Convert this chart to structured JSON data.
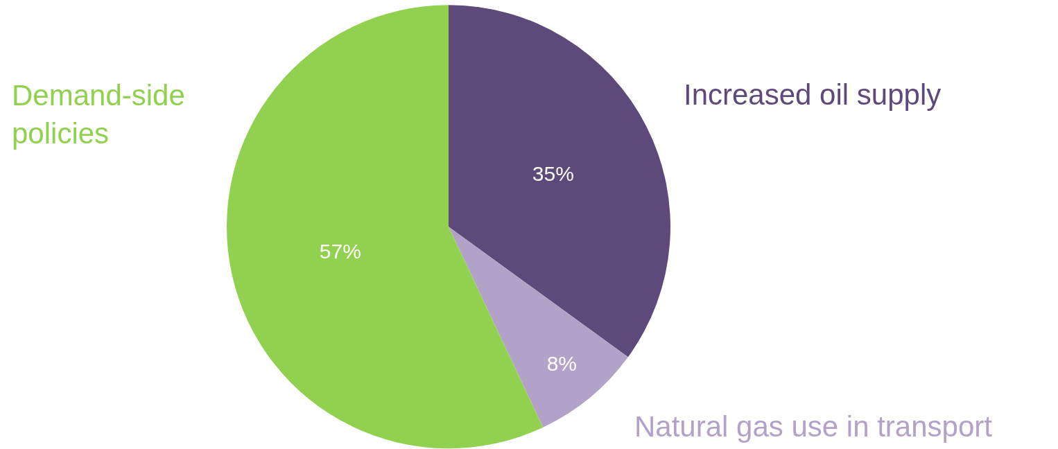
{
  "chart_data": {
    "type": "pie",
    "categories": [
      "Increased oil supply",
      "Natural gas use in transport",
      "Demand-side policies"
    ],
    "values": [
      35,
      8,
      57
    ],
    "colors": [
      "#5e4a7a",
      "#b3a2c8",
      "#92d050"
    ],
    "value_labels": [
      "35%",
      "8%",
      "57%"
    ],
    "legend": false
  }
}
